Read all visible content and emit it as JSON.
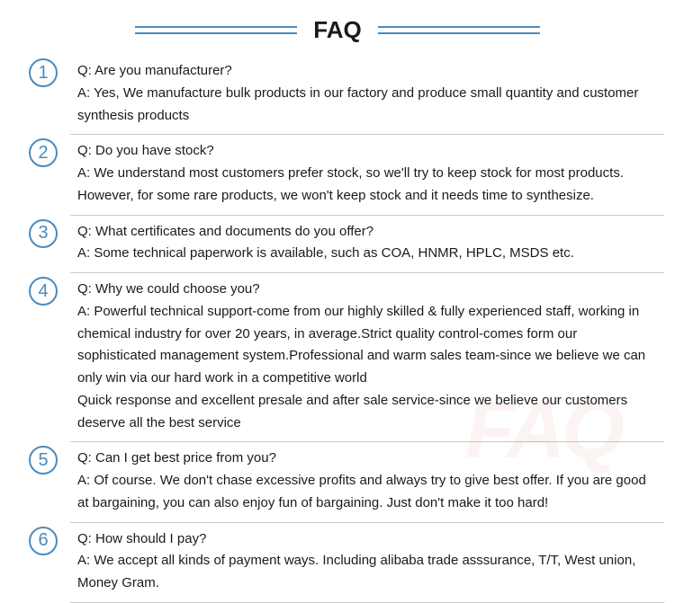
{
  "header": {
    "title": "FAQ",
    "title_fontsize": 26,
    "title_color": "#1a1a1a",
    "line_color": "#4a8bbf"
  },
  "colors": {
    "circle_border": "#4a8bbf",
    "circle_text": "#4a8bbf",
    "divider": "#c8c8c8",
    "text": "#1a1a1a",
    "background": "#ffffff",
    "watermark": "rgba(200,50,50,0.06)"
  },
  "watermark_text": "FAQ",
  "items": [
    {
      "num": "1",
      "q": "Q: Are you manufacturer?",
      "a": "A: Yes, We manufacture bulk products in our factory and produce small quantity and customer synthesis products"
    },
    {
      "num": "2",
      "q": "Q: Do you have stock?",
      "a": "A: We understand most customers prefer stock, so we'll try to keep stock for most products. However, for some rare products, we won't keep stock and it needs time to synthesize."
    },
    {
      "num": "3",
      "q": "Q: What certificates and documents do you offer?",
      "a": "A: Some technical paperwork is available, such as COA, HNMR, HPLC, MSDS etc."
    },
    {
      "num": "4",
      "q": "Q: Why we could choose you?",
      "a": "A: Powerful technical support-come from our highly skilled & fully experienced staff, working in chemical industry for over 20 years, in average.Strict quality control-comes form our sophisticated management system.Professional and warm sales team-since we believe we can only win via our hard work in a competitive world\nQuick response and excellent presale and after sale service-since we believe our customers deserve all the best service"
    },
    {
      "num": "5",
      "q": "Q: Can I get best price from you?",
      "a": "A: Of course. We don't chase excessive profits and always try to give best offer. If you are good at bargaining, you can also enjoy fun of bargaining. Just don't make it too hard!"
    },
    {
      "num": "6",
      "q": "Q: How should I pay?",
      "a": "A: We accept all kinds of payment ways. Including alibaba trade asssurance, T/T, West union, Money Gram."
    }
  ]
}
